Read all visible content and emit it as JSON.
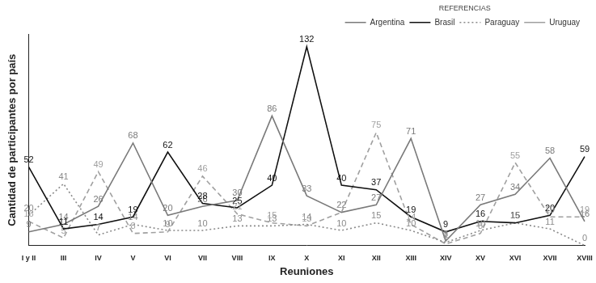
{
  "chart_data": {
    "type": "line",
    "x_label": "Reuniones",
    "y_label": "Cantidad de participantes por país",
    "legend_title": "REFERENCIAS",
    "legend": "top-right",
    "grid": false,
    "data_labels": true,
    "tick_labels": "x",
    "marker": "none",
    "ylim": [
      0,
      140
    ],
    "yticks": [],
    "categories": [
      "I y II",
      "III",
      "IV",
      "V",
      "VI",
      "VII",
      "VIII",
      "IX",
      "X",
      "XI",
      "XII",
      "XIII",
      "XIV",
      "XV",
      "XVI",
      "XVII",
      "XVIII"
    ],
    "series": [
      {
        "name": "Argentina",
        "color": "#7a7a7a",
        "line_style": "solid",
        "values": [
          9,
          14,
          26,
          68,
          20,
          26,
          30,
          86,
          33,
          22,
          27,
          71,
          3,
          27,
          34,
          58,
          16
        ]
      },
      {
        "name": "Brasil",
        "color": "#111111",
        "line_style": "solid",
        "values": [
          52,
          11,
          14,
          19,
          62,
          28,
          25,
          40,
          132,
          40,
          37,
          19,
          9,
          16,
          15,
          20,
          59
        ]
      },
      {
        "name": "Paraguay",
        "color": "#8a8a8a",
        "line_style": "dotted",
        "values": [
          20,
          41,
          7,
          14,
          10,
          10,
          13,
          13,
          14,
          10,
          15,
          10,
          2,
          10,
          15,
          11,
          0
        ]
      },
      {
        "name": "Uruguay",
        "color": "#a0a0a0",
        "line_style": "dashed",
        "values": [
          16,
          5,
          49,
          8,
          9,
          46,
          21,
          15,
          13,
          22,
          75,
          14,
          1,
          8,
          55,
          19,
          19
        ]
      }
    ]
  }
}
